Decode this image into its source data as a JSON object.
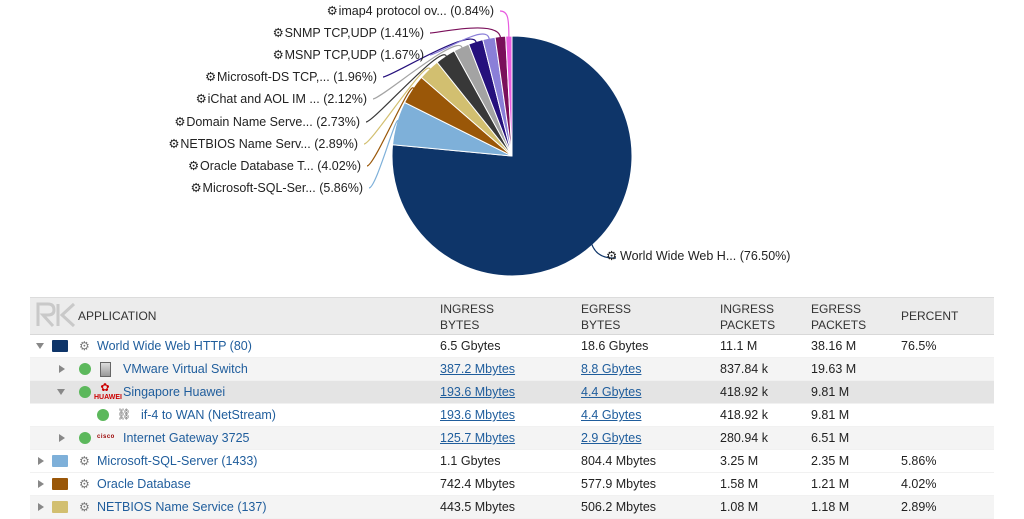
{
  "chart_data": {
    "type": "pie",
    "slices": [
      {
        "label": "World Wide Web H...",
        "value": 76.5,
        "percent_label": "(76.50%)",
        "color": "#0e3569"
      },
      {
        "label": "Microsoft-SQL-Ser...",
        "value": 5.86,
        "percent_label": "(5.86%)",
        "color": "#7eb0d9"
      },
      {
        "label": "Oracle Database T...",
        "value": 4.02,
        "percent_label": "(4.02%)",
        "color": "#9a5708"
      },
      {
        "label": "NETBIOS Name Serv...",
        "value": 2.89,
        "percent_label": "(2.89%)",
        "color": "#d2bf70"
      },
      {
        "label": "Domain Name Serve...",
        "value": 2.73,
        "percent_label": "(2.73%)",
        "color": "#383838"
      },
      {
        "label": "iChat and AOL IM ...",
        "value": 2.12,
        "percent_label": "(2.12%)",
        "color": "#a3a3a3"
      },
      {
        "label": "Microsoft-DS TCP,...",
        "value": 1.96,
        "percent_label": "(1.96%)",
        "color": "#25107c"
      },
      {
        "label": "MSNP TCP,UDP",
        "value": 1.67,
        "percent_label": "(1.67%)",
        "color": "#8a7fd8"
      },
      {
        "label": "SNMP TCP,UDP",
        "value": 1.41,
        "percent_label": "(1.41%)",
        "color": "#7a0f5a"
      },
      {
        "label": "imap4 protocol ov...",
        "value": 0.84,
        "percent_label": "(0.84%)",
        "color": "#e85be0"
      }
    ]
  },
  "table": {
    "headers": {
      "application": "APPLICATION",
      "ingress_bytes": [
        "INGRESS",
        "BYTES"
      ],
      "egress_bytes": [
        "EGRESS",
        "BYTES"
      ],
      "ingress_packets": [
        "INGRESS",
        "PACKETS"
      ],
      "egress_packets": [
        "EGRESS",
        "PACKETS"
      ],
      "percent": "PERCENT"
    },
    "rows": [
      {
        "name": "World Wide Web HTTP (80)",
        "ingress_bytes": "6.5 Gbytes",
        "egress_bytes": "18.6 Gbytes",
        "ingress_packets": "11.1 M",
        "egress_packets": "38.16 M",
        "percent": "76.5%",
        "color": "#0e3569"
      },
      {
        "name": "VMware Virtual Switch",
        "ingress_bytes": "387.2 Mbytes",
        "egress_bytes": "8.8 Gbytes",
        "ingress_packets": "837.84 k",
        "egress_packets": "19.63 M"
      },
      {
        "name": "Singapore Huawei",
        "ingress_bytes": "193.6 Mbytes",
        "egress_bytes": "4.4 Gbytes",
        "ingress_packets": "418.92 k",
        "egress_packets": "9.81 M",
        "logo_text": "HUAWEI"
      },
      {
        "name": "if-4 to WAN (NetStream)",
        "ingress_bytes": "193.6 Mbytes",
        "egress_bytes": "4.4 Gbytes",
        "ingress_packets": "418.92 k",
        "egress_packets": "9.81 M"
      },
      {
        "name": "Internet Gateway 3725",
        "ingress_bytes": "125.7 Mbytes",
        "egress_bytes": "2.9 Gbytes",
        "ingress_packets": "280.94 k",
        "egress_packets": "6.51 M",
        "logo_text": "cisco"
      },
      {
        "name": "Microsoft-SQL-Server (1433)",
        "ingress_bytes": "1.1 Gbytes",
        "egress_bytes": "804.4 Mbytes",
        "ingress_packets": "3.25 M",
        "egress_packets": "2.35 M",
        "percent": "5.86%",
        "color": "#7eb0d9"
      },
      {
        "name": "Oracle Database",
        "ingress_bytes": "742.4 Mbytes",
        "egress_bytes": "577.9 Mbytes",
        "ingress_packets": "1.58 M",
        "egress_packets": "1.21 M",
        "percent": "4.02%",
        "color": "#9a5708"
      },
      {
        "name": "NETBIOS Name Service (137)",
        "ingress_bytes": "443.5 Mbytes",
        "egress_bytes": "506.2 Mbytes",
        "ingress_packets": "1.08 M",
        "egress_packets": "1.18 M",
        "percent": "2.89%",
        "color": "#d2bf70"
      }
    ]
  },
  "icons": {
    "gear": "gear-icon",
    "collapse": "triangle-down-icon",
    "expand": "triangle-right-icon",
    "status": "green-status-dot",
    "vm": "vmware-switch-icon",
    "interface": "network-interface-icon",
    "logo": "rk-logo"
  }
}
